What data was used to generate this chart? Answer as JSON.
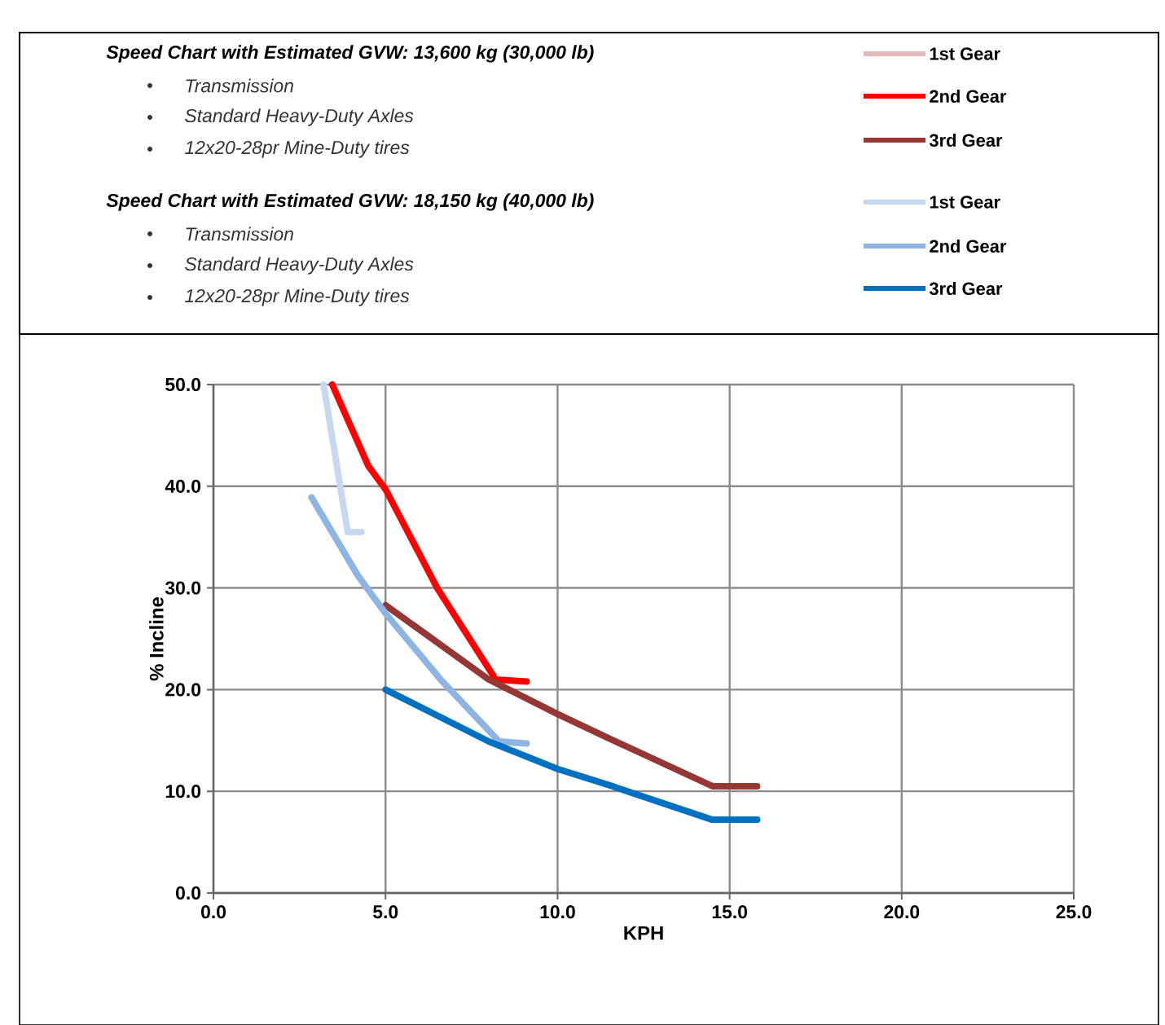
{
  "chart_data": {
    "type": "line",
    "xlabel": "KPH",
    "ylabel": "% Incline",
    "xlim": [
      0,
      25
    ],
    "ylim": [
      0,
      50
    ],
    "xticks": [
      {
        "value": 0,
        "label": "0.0"
      },
      {
        "value": 5,
        "label": "5.0"
      },
      {
        "value": 10,
        "label": "10.0"
      },
      {
        "value": 15,
        "label": "15.0"
      },
      {
        "value": 20,
        "label": "20.0"
      },
      {
        "value": 25,
        "label": "25.0"
      }
    ],
    "yticks": [
      {
        "value": 0,
        "label": "0.0"
      },
      {
        "value": 10,
        "label": "10.0"
      },
      {
        "value": 20,
        "label": "20.0"
      },
      {
        "value": 30,
        "label": "30.0"
      },
      {
        "value": 40,
        "label": "40.0"
      },
      {
        "value": 50,
        "label": "50.0"
      }
    ],
    "grid": true,
    "legend": "top right",
    "marker": "none",
    "line_style": "solid",
    "annotations": [
      "**Speed Chart with Estimated GVW: 13,600 kg (30,000 lb)**",
      "Transmission",
      "Standard Heavy-Duty Axles",
      "12x20-28pr Mine-Duty tires",
      "**Speed Chart with Estimated GVW: 18,150 kg (40,000 lb)**",
      "Transmission",
      "Standard Heavy-Duty Axles",
      "12x20-28pr Mine-Duty tires"
    ],
    "series": [
      {
        "name": "1st Gear",
        "color": "#e6b9b8"
      },
      {
        "name": "2nd Gear",
        "color": "#ff0000",
        "x": [
          3.45,
          4.5,
          5.0,
          6.5,
          8.2,
          9.1
        ],
        "values": [
          50,
          42,
          39.7,
          30,
          21,
          20.8
        ]
      },
      {
        "name": "3rd Gear",
        "color": "#953735",
        "x": [
          5.0,
          8.0,
          10.0,
          11.5,
          14.5,
          15.8
        ],
        "values": [
          28.3,
          21,
          17.6,
          15.2,
          10.5,
          10.5
        ]
      },
      {
        "name": "1st Gear",
        "color": "#c6d9f1",
        "x": [
          3.2,
          3.9,
          4.3
        ],
        "values": [
          50,
          35.5,
          35.5
        ]
      },
      {
        "name": "2nd Gear",
        "color": "#8db4e2",
        "x": [
          2.85,
          4.2,
          5.0,
          6.6,
          8.3,
          9.1
        ],
        "values": [
          38.9,
          31.2,
          27.5,
          21,
          14.9,
          14.7
        ]
      },
      {
        "name": "3rd Gear",
        "color": "#0070c0",
        "x": [
          5.0,
          8.0,
          10.0,
          11.5,
          14.5,
          15.8
        ],
        "values": [
          20,
          14.9,
          12.2,
          10.6,
          7.2,
          7.2
        ]
      }
    ]
  }
}
